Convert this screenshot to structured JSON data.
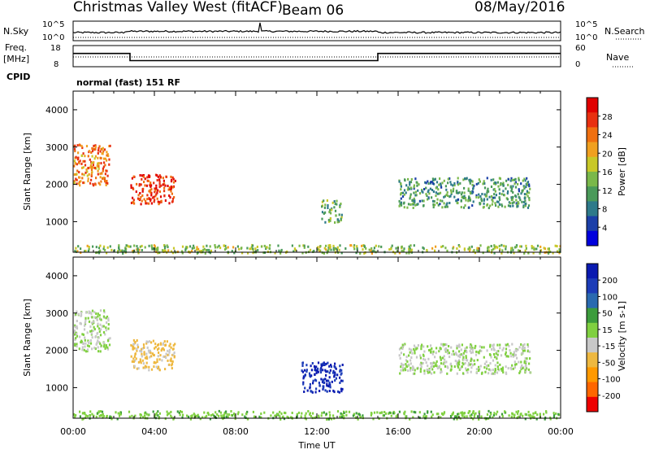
{
  "header": {
    "site": "Christmas Valley West (fitACF)",
    "beam": "Beam 06",
    "date": "08/May/2016"
  },
  "noise_panel": {
    "left_label": "N.Sky",
    "right_label": "N.Search",
    "left_ticks": [
      "10^5",
      "10^0"
    ],
    "right_ticks": [
      "10^5",
      "10^0"
    ]
  },
  "freq_panel": {
    "left_label_1": "Freq.",
    "left_label_2": "[MHz]",
    "right_label": "Nave",
    "left_ticks": [
      "18",
      "8"
    ],
    "right_ticks": [
      "60",
      "0"
    ],
    "cpid_label": "CPID",
    "cpid_text": "normal (fast) 151 RF"
  },
  "power_panel": {
    "ylabel": "Slant Range [km]",
    "colorbar_label": "Power [dB]",
    "colorbar_ticks": [
      "28",
      "24",
      "20",
      "16",
      "12",
      "8",
      "4"
    ],
    "colors": [
      "#0000dd",
      "#1b3fa8",
      "#2e7a8a",
      "#4a9a5a",
      "#7ab84a",
      "#c8c828",
      "#f0a020",
      "#f07010",
      "#e83010",
      "#e00000"
    ]
  },
  "velocity_panel": {
    "ylabel": "Slant Range [km]",
    "colorbar_label": "Velocity [m s-1]",
    "colorbar_ticks": [
      "200",
      "100",
      "50",
      "15",
      "-15",
      "-50",
      "-100",
      "-200"
    ],
    "colors": [
      "#ee0000",
      "#ff6600",
      "#ff9900",
      "#eeb840",
      "#c8c8c8",
      "#80d040",
      "#3c9c3c",
      "#2a6ab0",
      "#1c3cb8",
      "#0a1ab0"
    ]
  },
  "xaxis": {
    "label": "Time UT",
    "ticks": [
      "00:00",
      "04:00",
      "08:00",
      "12:00",
      "16:00",
      "20:00",
      "00:00"
    ]
  },
  "chart_data": {
    "type": "heatmap",
    "x_unit": "hours UT",
    "x_range": [
      0,
      24
    ],
    "y_range_km": [
      180,
      4500
    ],
    "y_ticks": [
      1000,
      2000,
      3000,
      4000
    ],
    "freq_steps": [
      {
        "from_h": 0,
        "to_h": 2.8,
        "freq_mhz": 14.5
      },
      {
        "from_h": 2.8,
        "to_h": 15.0,
        "freq_mhz": 10.5
      },
      {
        "from_h": 15.0,
        "to_h": 24,
        "freq_mhz": 14.5
      }
    ],
    "power_regions": [
      {
        "t": [
          0.0,
          1.8
        ],
        "r": [
          2000,
          3100
        ],
        "value_db": 22
      },
      {
        "t": [
          2.8,
          5.0
        ],
        "r": [
          1500,
          2300
        ],
        "value_db": 26
      },
      {
        "t": [
          12.2,
          13.2
        ],
        "r": [
          1000,
          1600
        ],
        "value_db": 12
      },
      {
        "t": [
          16.0,
          22.5
        ],
        "r": [
          1400,
          2200
        ],
        "value_db": 10
      },
      {
        "t": [
          0.0,
          24.0
        ],
        "r": [
          180,
          400
        ],
        "value_db": 14
      }
    ],
    "velocity_regions": [
      {
        "t": [
          0.0,
          1.8
        ],
        "r": [
          2000,
          3100
        ],
        "value_ms": 0
      },
      {
        "t": [
          2.8,
          5.0
        ],
        "r": [
          1500,
          2300
        ],
        "value_ms": -60
      },
      {
        "t": [
          11.2,
          13.3
        ],
        "r": [
          900,
          1700
        ],
        "value_ms": 200
      },
      {
        "t": [
          16.0,
          22.5
        ],
        "r": [
          1400,
          2200
        ],
        "value_ms": 0
      },
      {
        "t": [
          0.0,
          24.0
        ],
        "r": [
          180,
          400
        ],
        "value_ms": 40
      }
    ]
  }
}
